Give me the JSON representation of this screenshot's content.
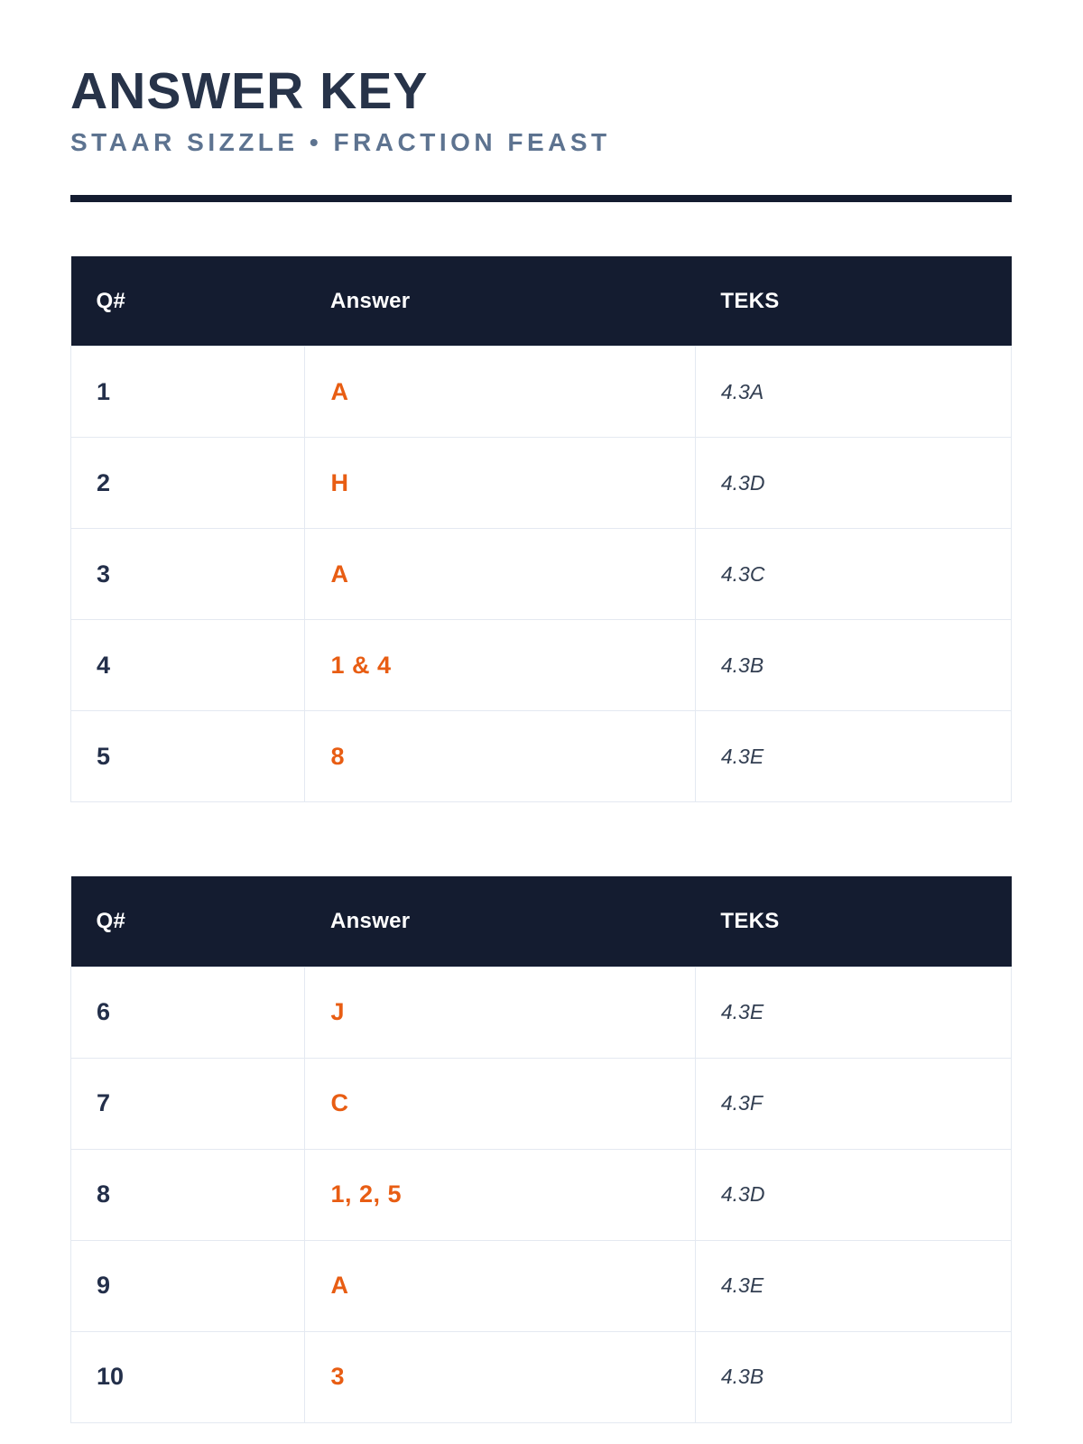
{
  "header": {
    "title": "ANSWER KEY",
    "subtitle": "STAAR SIZZLE • FRACTION FEAST"
  },
  "colors": {
    "navy_header": "#141c30",
    "title_text": "#273349",
    "subtitle_text": "#5d7390",
    "answer_accent": "#e85d13",
    "teks_text": "#333f52",
    "row_border": "#e4e9f1"
  },
  "tables": [
    {
      "headers": {
        "q": "Q#",
        "answer": "Answer",
        "teks": "TEKS"
      },
      "rows": [
        {
          "q": "1",
          "answer": "A",
          "teks": "4.3A"
        },
        {
          "q": "2",
          "answer": "H",
          "teks": "4.3D"
        },
        {
          "q": "3",
          "answer": "A",
          "teks": "4.3C"
        },
        {
          "q": "4",
          "answer": "1 & 4",
          "teks": "4.3B"
        },
        {
          "q": "5",
          "answer": "8",
          "teks": "4.3E"
        }
      ]
    },
    {
      "headers": {
        "q": "Q#",
        "answer": "Answer",
        "teks": "TEKS"
      },
      "rows": [
        {
          "q": "6",
          "answer": "J",
          "teks": "4.3E"
        },
        {
          "q": "7",
          "answer": "C",
          "teks": "4.3F"
        },
        {
          "q": "8",
          "answer": "1, 2, 5",
          "teks": "4.3D"
        },
        {
          "q": "9",
          "answer": "A",
          "teks": "4.3E"
        },
        {
          "q": "10",
          "answer": "3",
          "teks": "4.3B"
        }
      ]
    }
  ]
}
